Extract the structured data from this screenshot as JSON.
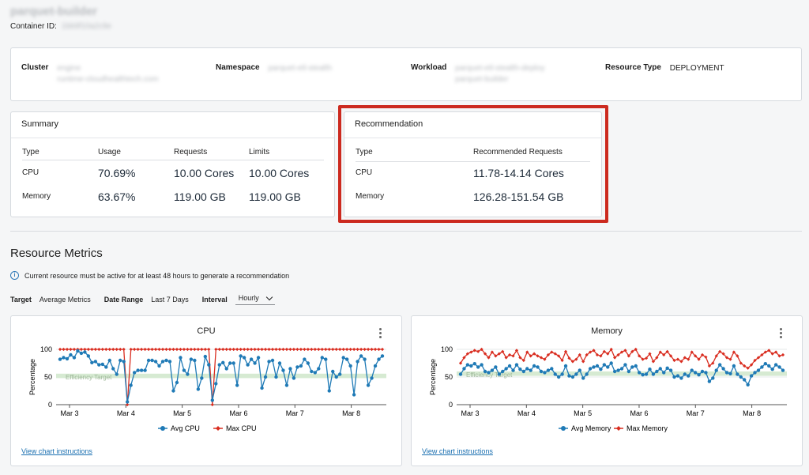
{
  "header": {
    "title": "parquet-builder",
    "container_id_label": "Container ID:",
    "container_id_value": "1bb9f10a2c9e"
  },
  "info": {
    "cluster_label": "Cluster",
    "cluster_value_line1": "engine",
    "cluster_value_line2": "runtime-cloudhealthtech.com",
    "namespace_label": "Namespace",
    "namespace_value": "parquet-etl-stealth",
    "workload_label": "Workload",
    "workload_value_line1": "parquet-etl-stealth-deploy",
    "workload_value_line2": "parquet-builder",
    "resource_type_label": "Resource Type",
    "resource_type_value": "DEPLOYMENT"
  },
  "summary": {
    "title": "Summary",
    "headers": [
      "Type",
      "Usage",
      "Requests",
      "Limits"
    ],
    "rows": [
      {
        "type": "CPU",
        "usage": "70.69%",
        "requests": "10.00 Cores",
        "limits": "10.00 Cores"
      },
      {
        "type": "Memory",
        "usage": "63.67%",
        "requests": "119.00 GB",
        "limits": "119.00 GB"
      }
    ]
  },
  "recommendation": {
    "title": "Recommendation",
    "headers": [
      "Type",
      "Recommended Requests"
    ],
    "rows": [
      {
        "type": "CPU",
        "value": "11.78-14.14 Cores"
      },
      {
        "type": "Memory",
        "value": "126.28-151.54 GB"
      }
    ]
  },
  "metrics": {
    "title": "Resource Metrics",
    "notice": "Current resource must be active for at least 48 hours to generate a recommendation",
    "target_label": "Target",
    "target_value": "Average Metrics",
    "date_range_label": "Date Range",
    "date_range_value": "Last 7 Days",
    "interval_label": "Interval",
    "interval_value": "Hourly",
    "chart_link": "View chart instructions"
  },
  "colors": {
    "avg_series": "#1f7ab6",
    "max_series": "#d92d20",
    "efficiency_band": "#d6ead2",
    "highlight": "#cc2a1f"
  },
  "chart_data": [
    {
      "type": "line",
      "title": "CPU",
      "ylabel": "Percentage",
      "ylim": [
        0,
        100
      ],
      "yticks": [
        0,
        50,
        100
      ],
      "x_tick_labels": [
        "Mar 3",
        "Mar 4",
        "Mar 5",
        "Mar 6",
        "Mar 7",
        "Mar 8"
      ],
      "efficiency_band": {
        "label": "Efficiency Target",
        "range": [
          48,
          56
        ]
      },
      "legend_position": "bottom",
      "series": [
        {
          "name": "Avg CPU",
          "color": "#1f7ab6",
          "values": [
            82,
            85,
            83,
            90,
            85,
            97,
            93,
            95,
            88,
            76,
            78,
            72,
            73,
            68,
            80,
            65,
            55,
            80,
            78,
            5,
            35,
            58,
            62,
            62,
            62,
            80,
            80,
            78,
            70,
            78,
            80,
            78,
            25,
            40,
            85,
            62,
            55,
            82,
            80,
            28,
            48,
            87,
            72,
            8,
            38,
            72,
            76,
            65,
            75,
            75,
            35,
            88,
            85,
            72,
            82,
            75,
            85,
            30,
            50,
            78,
            80,
            50,
            75,
            62,
            35,
            65,
            48,
            68,
            70,
            82,
            75,
            60,
            58,
            65,
            85,
            82,
            25,
            60,
            50,
            55,
            85,
            82,
            70,
            18,
            78,
            88,
            82,
            35,
            48,
            70,
            82,
            88
          ]
        },
        {
          "name": "Max CPU",
          "color": "#d92d20",
          "values": [
            100,
            100,
            100,
            100,
            100,
            100,
            100,
            100,
            100,
            100,
            100,
            100,
            100,
            100,
            100,
            100,
            100,
            100,
            100,
            0,
            100,
            100,
            100,
            100,
            100,
            100,
            100,
            100,
            100,
            100,
            100,
            100,
            100,
            100,
            100,
            100,
            100,
            100,
            100,
            100,
            100,
            100,
            100,
            0,
            100,
            100,
            100,
            100,
            100,
            100,
            100,
            100,
            100,
            100,
            100,
            100,
            100,
            100,
            100,
            100,
            100,
            100,
            100,
            100,
            100,
            100,
            100,
            100,
            100,
            100,
            100,
            100,
            100,
            100,
            100,
            100,
            100,
            100,
            100,
            100,
            100,
            100,
            100,
            100,
            100,
            100,
            100,
            100,
            100,
            100,
            100,
            100
          ]
        }
      ]
    },
    {
      "type": "line",
      "title": "Memory",
      "ylabel": "Percentage",
      "ylim": [
        0,
        100
      ],
      "yticks": [
        0,
        50,
        100
      ],
      "x_tick_labels": [
        "Mar 3",
        "Mar 4",
        "Mar 5",
        "Mar 6",
        "Mar 7",
        "Mar 8"
      ],
      "efficiency_band": {
        "label": "Efficiency Target",
        "range": [
          52,
          60
        ]
      },
      "legend_position": "bottom",
      "series": [
        {
          "name": "Avg Memory",
          "color": "#1f7ab6",
          "values": [
            55,
            65,
            72,
            70,
            74,
            68,
            72,
            60,
            58,
            62,
            68,
            55,
            60,
            65,
            70,
            62,
            72,
            64,
            60,
            65,
            62,
            70,
            68,
            60,
            58,
            62,
            65,
            55,
            50,
            55,
            70,
            52,
            50,
            55,
            62,
            48,
            55,
            65,
            68,
            70,
            64,
            72,
            68,
            75,
            60,
            62,
            65,
            72,
            60,
            68,
            70,
            58,
            54,
            55,
            64,
            55,
            60,
            65,
            58,
            66,
            62,
            50,
            52,
            48,
            55,
            52,
            62,
            58,
            54,
            60,
            58,
            42,
            48,
            62,
            72,
            65,
            58,
            56,
            70,
            55,
            50,
            45,
            36,
            52,
            58,
            62,
            68,
            74,
            70,
            64,
            72,
            68,
            62
          ]
        },
        {
          "name": "Max Memory",
          "color": "#d92d20",
          "values": [
            75,
            85,
            92,
            95,
            98,
            96,
            100,
            92,
            85,
            95,
            88,
            92,
            96,
            85,
            90,
            88,
            98,
            85,
            80,
            95,
            88,
            92,
            88,
            85,
            82,
            90,
            95,
            92,
            88,
            80,
            96,
            84,
            78,
            82,
            90,
            78,
            90,
            95,
            98,
            90,
            88,
            96,
            92,
            100,
            85,
            90,
            95,
            98,
            88,
            96,
            100,
            88,
            82,
            84,
            92,
            78,
            85,
            95,
            90,
            96,
            88,
            80,
            82,
            78,
            85,
            82,
            95,
            88,
            82,
            90,
            86,
            70,
            75,
            88,
            96,
            92,
            85,
            82,
            95,
            88,
            75,
            70,
            66,
            72,
            80,
            85,
            90,
            95,
            98,
            92,
            95,
            88,
            90
          ]
        }
      ]
    }
  ]
}
